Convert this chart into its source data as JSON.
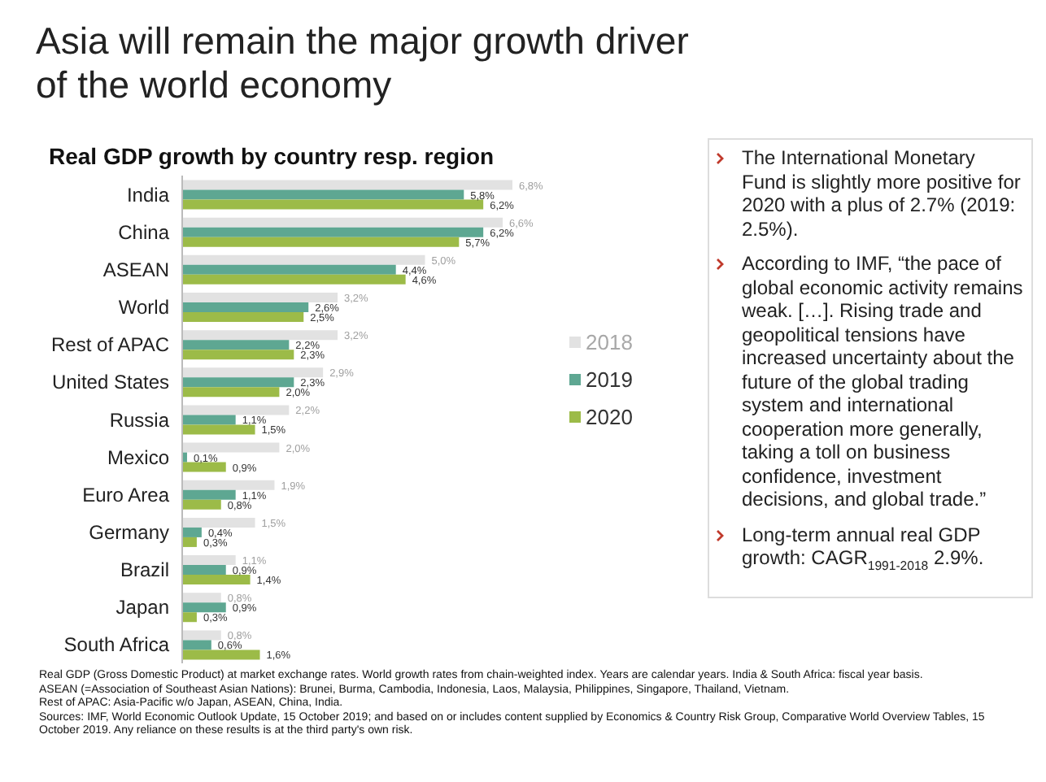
{
  "chart_data": {
    "type": "bar",
    "orientation": "horizontal",
    "title": "Asia will remain the major growth driver of the world economy",
    "subtitle": "Real GDP growth by country resp. region",
    "categories": [
      "India",
      "China",
      "ASEAN",
      "World",
      "Rest of APAC",
      "United States",
      "Russia",
      "Mexico",
      "Euro Area",
      "Germany",
      "Brazil",
      "Japan",
      "South Africa"
    ],
    "series": [
      {
        "name": "2018",
        "color": "#e2e2e2",
        "values": [
          6.8,
          6.6,
          5.0,
          3.2,
          3.2,
          2.9,
          2.2,
          2.0,
          1.9,
          1.5,
          1.1,
          0.8,
          0.8
        ],
        "value_labels": [
          "6,8%",
          "6,6%",
          "5,0%",
          "3,2%",
          "3,2%",
          "2,9%",
          "2,2%",
          "2,0%",
          "1,9%",
          "1,5%",
          "1,1%",
          "0,8%",
          "0,8%"
        ]
      },
      {
        "name": "2019",
        "color": "#5ea792",
        "values": [
          5.8,
          6.2,
          4.4,
          2.6,
          2.2,
          2.3,
          1.1,
          0.1,
          1.1,
          0.4,
          0.9,
          0.9,
          0.6
        ],
        "value_labels": [
          "5,8%",
          "6,2%",
          "4,4%",
          "2,6%",
          "2,2%",
          "2,3%",
          "1,1%",
          "0,1%",
          "1,1%",
          "0,4%",
          "0,9%",
          "0,9%",
          "0,6%"
        ]
      },
      {
        "name": "2020",
        "color": "#9cbb48",
        "values": [
          6.2,
          5.7,
          4.6,
          2.5,
          2.3,
          2.0,
          1.5,
          0.9,
          0.8,
          0.3,
          1.4,
          0.3,
          1.6
        ],
        "value_labels": [
          "6,2%",
          "5,7%",
          "4,6%",
          "2,5%",
          "2,3%",
          "2,0%",
          "1,5%",
          "0,9%",
          "0,8%",
          "0,3%",
          "1,4%",
          "0,3%",
          "1,6%"
        ]
      }
    ],
    "legend": "right",
    "tick_labels": "y",
    "annotations": [
      "The International Monetary Fund is slightly more positive for 2020 with a plus of 2.7% (2019: 2.5%).",
      "According to IMF, “the pace of global economic activity remains weak. […]. Rising trade and geopolitical tensions have increased uncertainty about the future of the global trading system and international cooperation more generally, taking a toll on business confidence, investment decisions, and global trade.”",
      "Long-term annual real GDP growth: CAGR$_{1991-2018}$ 2.9%.",
      "Real GDP (Gross Domestic Product) at market exchange rates. World growth rates from chain-weighted index. Years are calendar years. India & South Africa: fiscal year basis.",
      "ASEAN (=Association of Southeast Asian Nations): Brunei, Burma, Cambodia, Indonesia, Laos, Malaysia, Philippines, Singapore, Thailand, Vietnam.",
      "Rest of APAC: Asia-Pacific w/o Japan, ASEAN, China, India.",
      "Sources: IMF, World Economic Outlook Update, 15 October 2019; and based on or includes content supplied by Economics & Country Risk Group, Comparative World Overview Tables, 15 October 2019. Any reliance on these results is at the third party's own risk."
    ]
  }
}
